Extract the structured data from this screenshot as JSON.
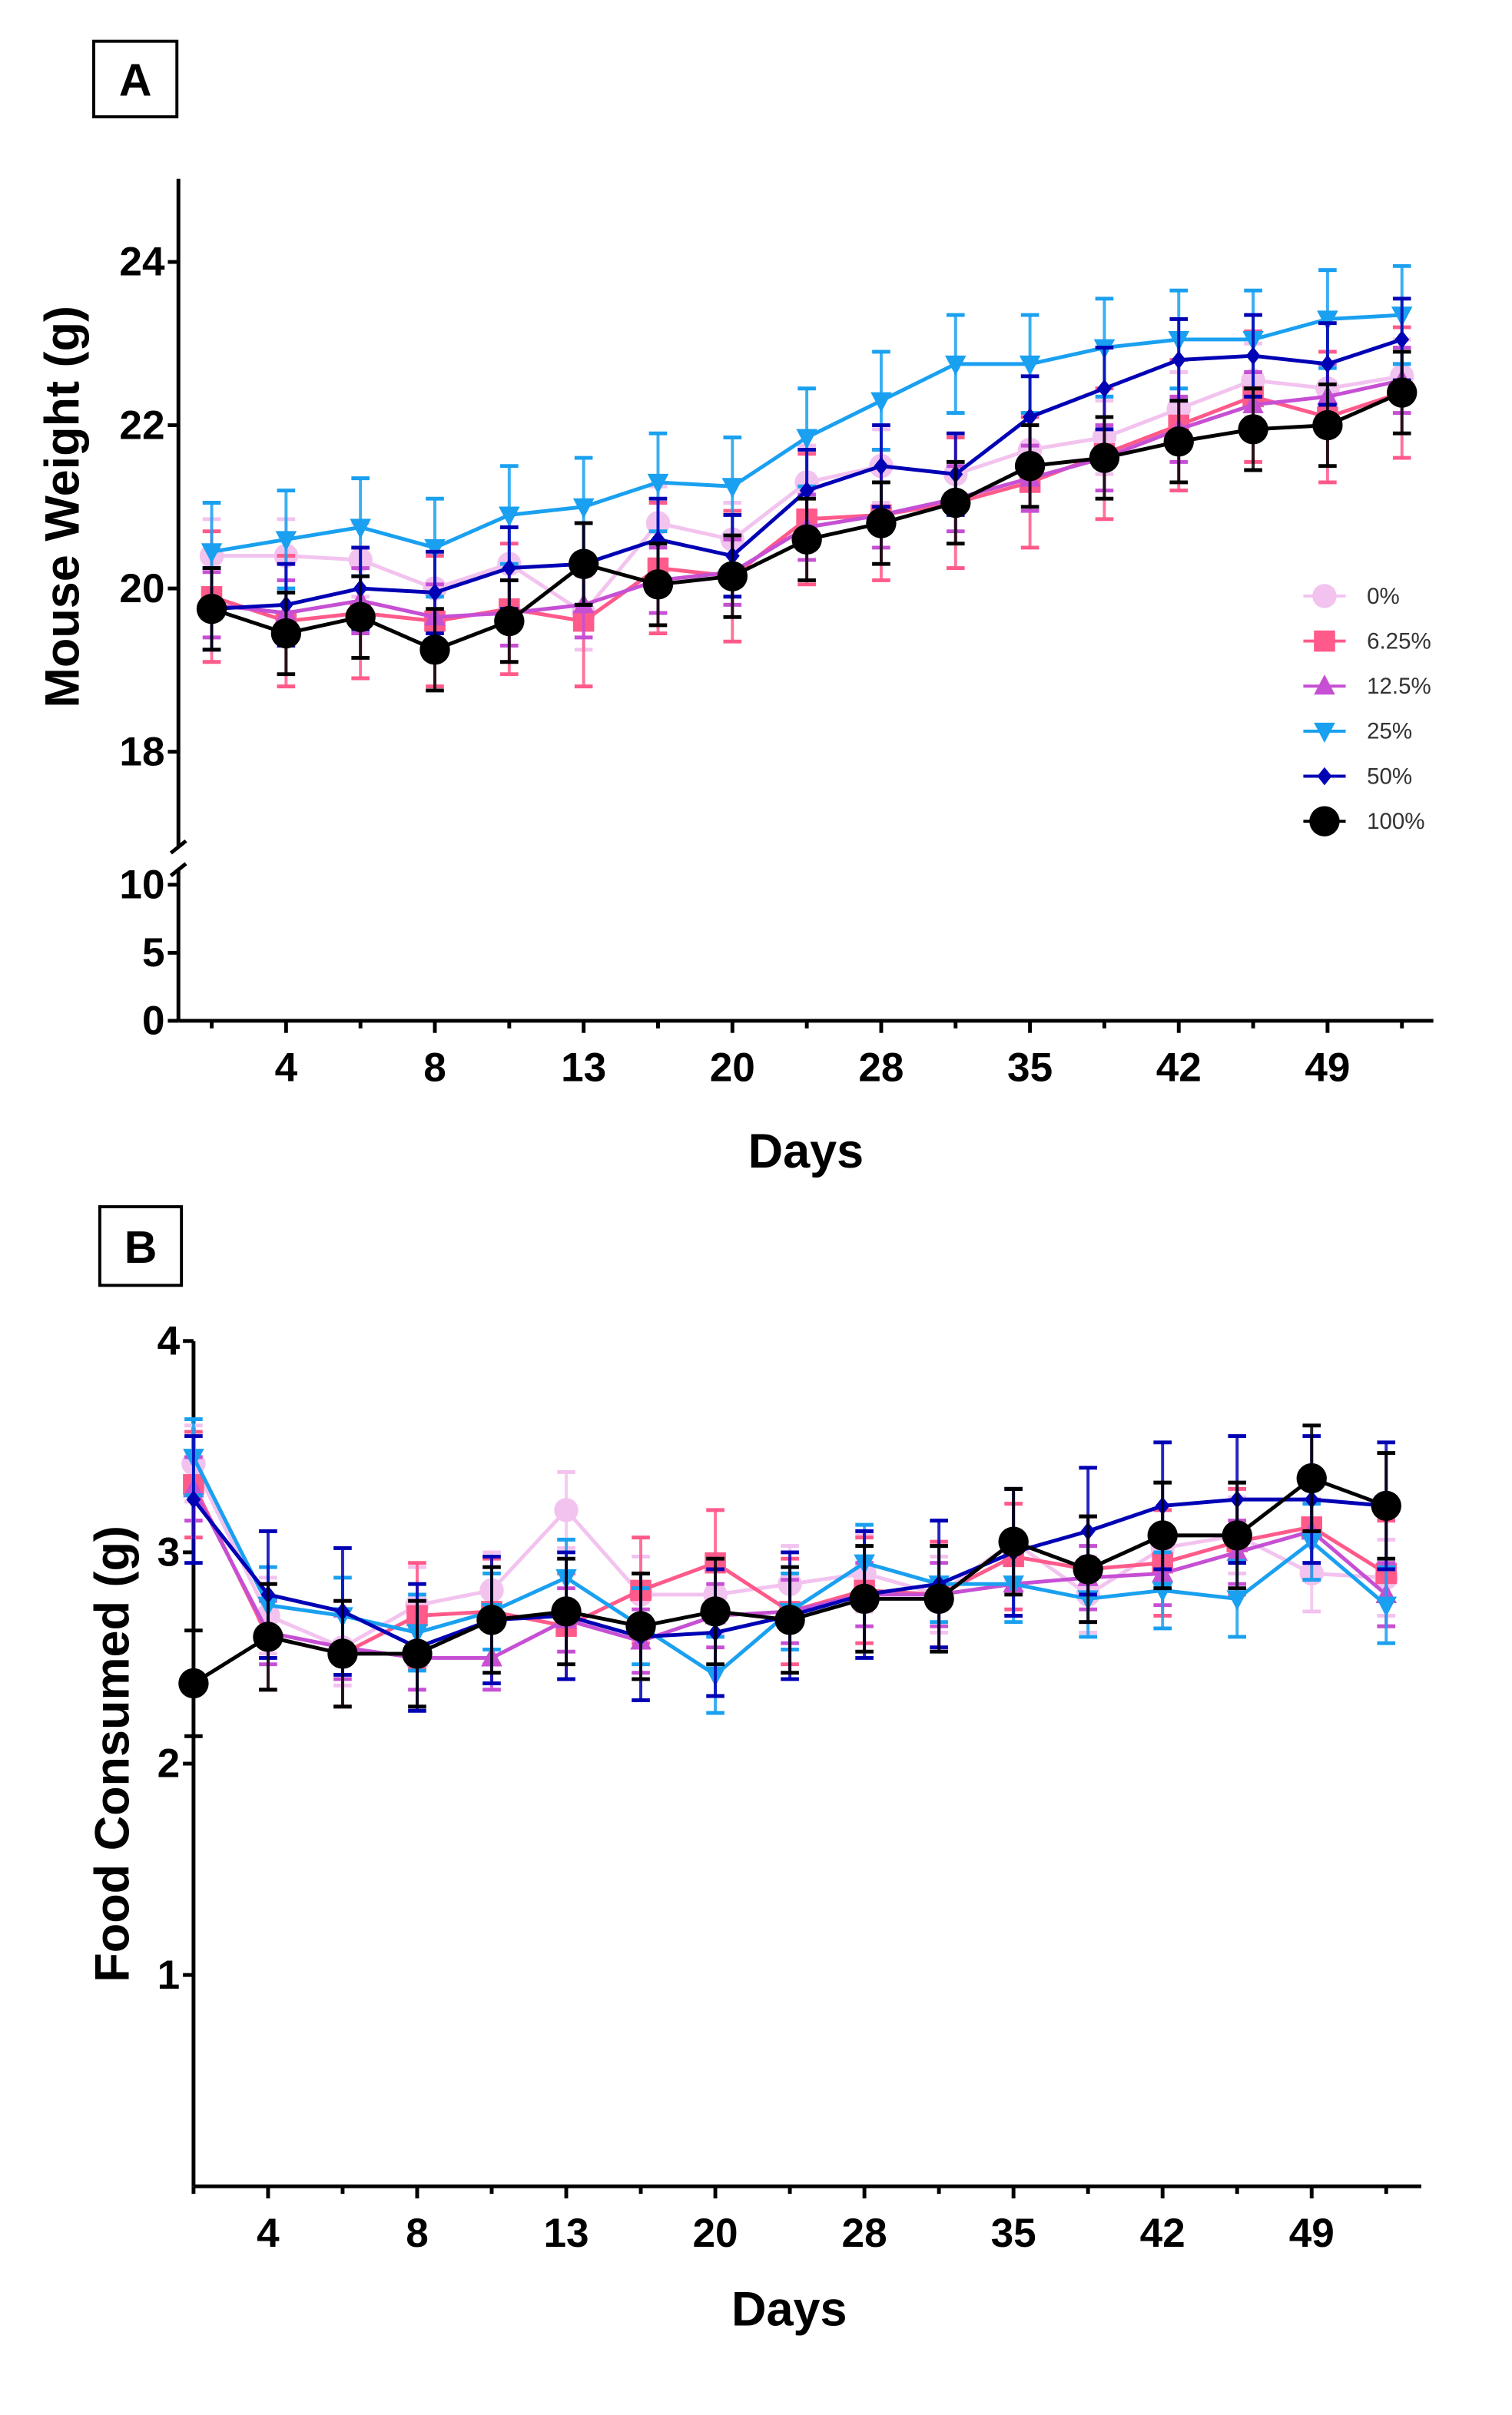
{
  "colors": {
    "0%": "#f3c3ef",
    "6.25%": "#ff5a8a",
    "12.5%": "#c64fd4",
    "25%": "#1aa0f0",
    "50%": "#0000b4",
    "100%": "#000000"
  },
  "chart_data": [
    {
      "panel_label": "A",
      "type": "line",
      "xlabel": "Days",
      "ylabel": "Mouse  Weight (g)",
      "categories": [
        "",
        "4",
        "",
        "8",
        "",
        "13",
        "",
        "20",
        "",
        "28",
        "",
        "35",
        "",
        "42",
        "",
        "49",
        ""
      ],
      "y_axis_broken": true,
      "y_segments": [
        {
          "range": [
            0,
            11
          ],
          "ticks": [
            0,
            5,
            10
          ]
        },
        {
          "range": [
            17,
            25
          ],
          "ticks": [
            18,
            20,
            22,
            24
          ]
        }
      ],
      "grid": false,
      "legend_position": "right",
      "legend": [
        "0%",
        "6.25%",
        "12.5%",
        "25%",
        "50%",
        "100%"
      ],
      "series": [
        {
          "name": "0%",
          "marker": "circle",
          "error": 0.45,
          "values": [
            20.4,
            20.4,
            20.35,
            20.0,
            20.3,
            19.7,
            20.8,
            20.6,
            21.3,
            21.5,
            21.4,
            21.7,
            21.85,
            22.2,
            22.55,
            22.45,
            22.6
          ]
        },
        {
          "name": "6.25%",
          "marker": "square",
          "error": 0.8,
          "values": [
            19.9,
            19.6,
            19.7,
            19.6,
            19.75,
            19.6,
            20.25,
            20.15,
            20.85,
            20.9,
            21.05,
            21.3,
            21.65,
            22.0,
            22.35,
            22.1,
            22.4
          ]
        },
        {
          "name": "12.5%",
          "marker": "triangle-up",
          "error": 0.4,
          "values": [
            19.8,
            19.7,
            19.85,
            19.65,
            19.7,
            19.8,
            20.1,
            20.2,
            20.75,
            20.9,
            21.1,
            21.35,
            21.6,
            21.95,
            22.25,
            22.35,
            22.55
          ]
        },
        {
          "name": "25%",
          "marker": "triangle-down",
          "error": 0.6,
          "values": [
            20.45,
            20.6,
            20.75,
            20.5,
            20.9,
            21.0,
            21.3,
            21.25,
            21.85,
            22.3,
            22.75,
            22.75,
            22.95,
            23.05,
            23.05,
            23.3,
            23.35
          ]
        },
        {
          "name": "50%",
          "marker": "diamond",
          "error": 0.5,
          "values": [
            19.75,
            19.8,
            20.0,
            19.95,
            20.25,
            20.3,
            20.6,
            20.4,
            21.2,
            21.5,
            21.4,
            22.1,
            22.45,
            22.8,
            22.85,
            22.75,
            23.05
          ]
        },
        {
          "name": "100%",
          "marker": "circle",
          "error": 0.5,
          "values": [
            19.75,
            19.45,
            19.65,
            19.25,
            19.6,
            20.3,
            20.05,
            20.15,
            20.6,
            20.8,
            21.05,
            21.5,
            21.6,
            21.8,
            21.95,
            22.0,
            22.4
          ]
        }
      ]
    },
    {
      "panel_label": "B",
      "type": "line",
      "xlabel": "Days",
      "ylabel": "Food Consumed (g)",
      "categories": [
        "",
        "4",
        "",
        "8",
        "",
        "13",
        "",
        "20",
        "",
        "28",
        "",
        "35",
        "",
        "42",
        "",
        "49",
        ""
      ],
      "ylim": [
        0,
        4
      ],
      "yticks": [
        1,
        2,
        3,
        4
      ],
      "grid": false,
      "series": [
        {
          "name": "0%",
          "marker": "circle",
          "error": 0.18,
          "values": [
            3.42,
            2.7,
            2.55,
            2.75,
            2.82,
            3.2,
            2.8,
            2.8,
            2.85,
            2.9,
            2.8,
            3.05,
            2.8,
            3.02,
            3.08,
            2.9,
            2.88
          ]
        },
        {
          "name": "6.25%",
          "marker": "square",
          "error": 0.25,
          "values": [
            3.32,
            2.6,
            2.52,
            2.7,
            2.72,
            2.65,
            2.82,
            2.95,
            2.72,
            2.82,
            2.8,
            2.98,
            2.92,
            2.95,
            3.05,
            3.12,
            2.9
          ]
        },
        {
          "name": "12.5%",
          "marker": "triangle-up",
          "error": 0.15,
          "values": [
            3.3,
            2.62,
            2.55,
            2.5,
            2.5,
            2.68,
            2.58,
            2.7,
            2.72,
            2.8,
            2.8,
            2.85,
            2.88,
            2.9,
            3.0,
            3.1,
            2.8
          ]
        },
        {
          "name": "25%",
          "marker": "triangle-down",
          "error": 0.18,
          "values": [
            3.45,
            2.75,
            2.7,
            2.62,
            2.72,
            2.88,
            2.65,
            2.42,
            2.72,
            2.95,
            2.85,
            2.85,
            2.78,
            2.82,
            2.78,
            3.05,
            2.75
          ]
        },
        {
          "name": "50%",
          "marker": "diamond",
          "error": 0.3,
          "values": [
            3.25,
            2.8,
            2.72,
            2.55,
            2.68,
            2.7,
            2.6,
            2.62,
            2.7,
            2.8,
            2.85,
            3.0,
            3.1,
            3.22,
            3.25,
            3.25,
            3.22
          ]
        },
        {
          "name": "100%",
          "marker": "circle",
          "error": 0.25,
          "values": [
            2.38,
            2.6,
            2.52,
            2.52,
            2.68,
            2.72,
            2.65,
            2.72,
            2.68,
            2.78,
            2.78,
            3.05,
            2.92,
            3.08,
            3.08,
            3.35,
            3.22
          ]
        }
      ]
    }
  ]
}
